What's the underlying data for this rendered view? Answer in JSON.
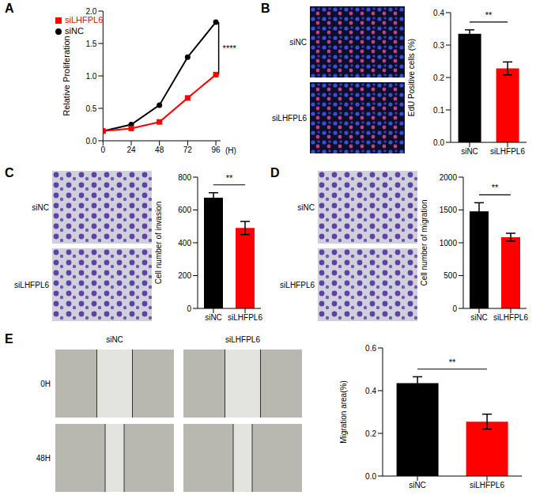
{
  "chart_data": [
    {
      "panel": "A",
      "type": "line",
      "x": [
        0,
        24,
        48,
        72,
        96
      ],
      "xlim": [
        0,
        100
      ],
      "xticks": [
        0,
        24,
        48,
        72,
        96
      ],
      "x_label": "(H)",
      "y_label": "Relative Proliferation",
      "ylim": [
        0,
        2
      ],
      "yticks": [
        {
          "value": 0,
          "label": "0.0"
        },
        {
          "value": 0.5,
          "label": "0.5"
        },
        {
          "value": 1,
          "label": "1.0"
        },
        {
          "value": 1.5,
          "label": "1.5"
        },
        {
          "value": 2,
          "label": "2.0"
        }
      ],
      "legend": "upper left",
      "annotation": "****",
      "series": [
        {
          "name": "siNC",
          "color": "#000000",
          "marker": "circle",
          "values": [
            0.15,
            0.25,
            0.55,
            1.29,
            1.83
          ]
        },
        {
          "name": "siLHFPL6",
          "color": "#ff0000",
          "marker": "square",
          "values": [
            0.15,
            0.19,
            0.29,
            0.66,
            1.02
          ]
        }
      ]
    },
    {
      "panel": "B",
      "type": "bar",
      "image_rows": [
        "siNC",
        "siLHFPL6"
      ],
      "categories": [
        "siNC",
        "siLHFPL6"
      ],
      "values": [
        0.335,
        0.228
      ],
      "errors": [
        0.012,
        0.02
      ],
      "colors": [
        "#000000",
        "#ff0000"
      ],
      "y_label": "EdU Positive cells (%)",
      "ylim": [
        0,
        0.4
      ],
      "yticks": [
        {
          "value": 0,
          "label": "0.0"
        },
        0.1,
        0.2,
        0.3,
        0.4
      ],
      "annotation": "**"
    },
    {
      "panel": "C",
      "type": "bar",
      "image_rows": [
        "siNC",
        "siLHFPL6"
      ],
      "categories": [
        "siNC",
        "siLHFPL6"
      ],
      "values": [
        675,
        490
      ],
      "errors": [
        30,
        40
      ],
      "colors": [
        "#000000",
        "#ff0000"
      ],
      "y_label": "Cell number of invasion",
      "ylim": [
        0,
        800
      ],
      "yticks": [
        0,
        200,
        400,
        600,
        800
      ],
      "annotation": "**"
    },
    {
      "panel": "D",
      "type": "bar",
      "image_rows": [
        "siNC",
        "siLHFPL6"
      ],
      "categories": [
        "siNC",
        "siLHFPL6"
      ],
      "values": [
        1480,
        1085
      ],
      "errors": [
        130,
        60
      ],
      "colors": [
        "#000000",
        "#ff0000"
      ],
      "y_label": "Cell number of migration",
      "ylim": [
        0,
        2000
      ],
      "yticks": [
        0,
        500,
        1000,
        1500,
        2000
      ],
      "annotation": "**"
    },
    {
      "panel": "E",
      "type": "bar",
      "image_columns": [
        "siNC",
        "siLHFPL6"
      ],
      "image_rows": [
        "0H",
        "48H"
      ],
      "categories": [
        "siNC",
        "siLHFPL6"
      ],
      "values": [
        0.435,
        0.255
      ],
      "errors": [
        0.03,
        0.035
      ],
      "colors": [
        "#000000",
        "#ff0000"
      ],
      "y_label": "Migration area(%)",
      "ylim": [
        0,
        0.6
      ],
      "yticks": [
        {
          "value": 0,
          "label": "0.0"
        },
        0.2,
        0.4,
        0.6
      ],
      "annotation": "**"
    }
  ]
}
